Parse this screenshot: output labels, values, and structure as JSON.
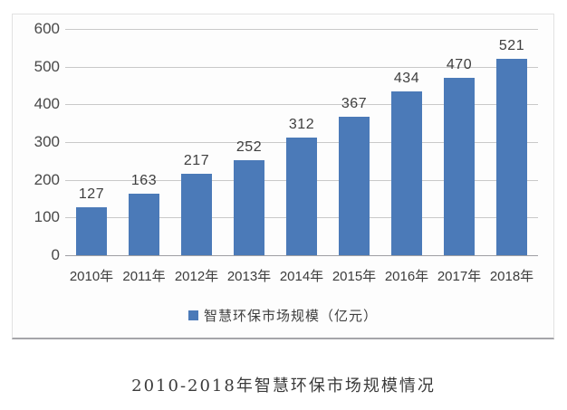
{
  "chart_data": {
    "type": "bar",
    "title": "2010-2018年智慧环保市场规模情况",
    "categories": [
      "2010年",
      "2011年",
      "2012年",
      "2013年",
      "2014年",
      "2015年",
      "2016年",
      "2017年",
      "2018年"
    ],
    "series": [
      {
        "name": "智慧环保市场规模（亿元）",
        "values": [
          127,
          163,
          217,
          252,
          312,
          367,
          434,
          470,
          521
        ]
      }
    ],
    "data_labels": [
      127,
      163,
      217,
      252,
      312,
      367,
      434,
      470,
      521
    ],
    "xlabel": "",
    "ylabel": "",
    "ylim": [
      0,
      600
    ],
    "yticks": [
      0,
      100,
      200,
      300,
      400,
      500,
      600
    ],
    "grid": true,
    "legend_position": "bottom",
    "bar_color": "#4b7ab8",
    "gridline_color": "#c9c9c9",
    "baseline_color": "#9f9fa3",
    "text_color": "#3e3e3e"
  },
  "legend": {
    "marker_icon": "square-icon",
    "label": "智慧环保市场规模（亿元）"
  },
  "caption": {
    "text": "2010-2018年智慧环保市场规模情况"
  }
}
